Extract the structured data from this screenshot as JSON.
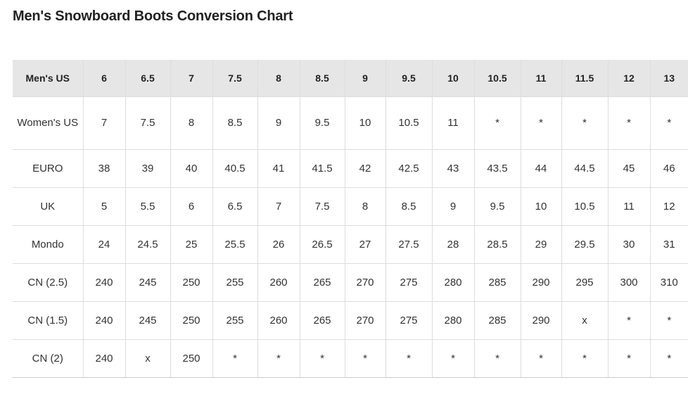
{
  "page": {
    "title": "Men's Snowboard Boots Conversion Chart"
  },
  "table": {
    "header_label": "Men's US",
    "columns": [
      "6",
      "6.5",
      "7",
      "7.5",
      "8",
      "8.5",
      "9",
      "9.5",
      "10",
      "10.5",
      "11",
      "11.5",
      "12",
      "13"
    ],
    "rows": [
      {
        "label": "Women's US",
        "values": [
          "7",
          "7.5",
          "8",
          "8.5",
          "9",
          "9.5",
          "10",
          "10.5",
          "11",
          "*",
          "*",
          "*",
          "*",
          "*"
        ]
      },
      {
        "label": "EURO",
        "values": [
          "38",
          "39",
          "40",
          "40.5",
          "41",
          "41.5",
          "42",
          "42.5",
          "43",
          "43.5",
          "44",
          "44.5",
          "45",
          "46"
        ]
      },
      {
        "label": "UK",
        "values": [
          "5",
          "5.5",
          "6",
          "6.5",
          "7",
          "7.5",
          "8",
          "8.5",
          "9",
          "9.5",
          "10",
          "10.5",
          "11",
          "12"
        ]
      },
      {
        "label": "Mondo",
        "values": [
          "24",
          "24.5",
          "25",
          "25.5",
          "26",
          "26.5",
          "27",
          "27.5",
          "28",
          "28.5",
          "29",
          "29.5",
          "30",
          "31"
        ]
      },
      {
        "label": "CN (2.5)",
        "values": [
          "240",
          "245",
          "250",
          "255",
          "260",
          "265",
          "270",
          "275",
          "280",
          "285",
          "290",
          "295",
          "300",
          "310"
        ]
      },
      {
        "label": "CN (1.5)",
        "values": [
          "240",
          "245",
          "250",
          "255",
          "260",
          "265",
          "270",
          "275",
          "280",
          "285",
          "290",
          "x",
          "*",
          "*"
        ]
      },
      {
        "label": "CN (2)",
        "values": [
          "240",
          "x",
          "250",
          "*",
          "*",
          "*",
          "*",
          "*",
          "*",
          "*",
          "*",
          "*",
          "*",
          "*"
        ]
      }
    ]
  }
}
